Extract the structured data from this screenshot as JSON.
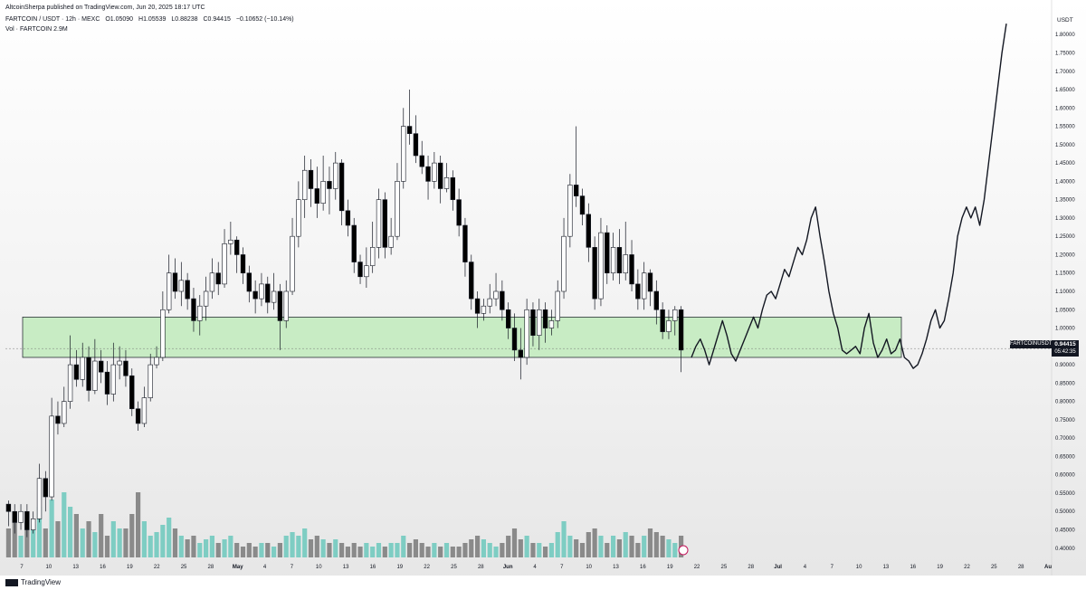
{
  "header": {
    "publisher": "AltcoinSherpa published on TradingView.com, Jun 20, 2025 18:17 UTC",
    "symbol": "FARTCOIN / USDT · 12h · MEXC",
    "open": "O1.05090",
    "high": "H1.05539",
    "low": "L0.88238",
    "close": "C0.94415",
    "change": "−0.10652 (−10.14%)",
    "volume": "Vol · FARTCOIN  2.9M"
  },
  "axis": {
    "currency": "USDT",
    "price_label": "FARTCOINUSDT",
    "current_value": "0.94415",
    "countdown": "05:42:35"
  },
  "footer": {
    "logo": "TradingView"
  },
  "colors": {
    "up": "#ffffff",
    "down": "#000000",
    "zone_fill": "#c8ecc4",
    "vol_up": "#7ecdc3",
    "vol_down": "#8a8a8a"
  },
  "chart_data": {
    "type": "candlestick",
    "ylim": [
      0.36,
      1.84
    ],
    "y_ticks": [
      0.4,
      0.45,
      0.5,
      0.55,
      0.6,
      0.65,
      0.7,
      0.75,
      0.8,
      0.85,
      0.9,
      0.95,
      1.0,
      1.05,
      1.1,
      1.15,
      1.2,
      1.25,
      1.3,
      1.35,
      1.4,
      1.45,
      1.5,
      1.55,
      1.6,
      1.65,
      1.7,
      1.75,
      1.8
    ],
    "x_labels": [
      "7",
      "10",
      "13",
      "16",
      "19",
      "22",
      "25",
      "28",
      "May",
      "4",
      "7",
      "10",
      "13",
      "16",
      "19",
      "22",
      "25",
      "28",
      "Jun",
      "4",
      "7",
      "10",
      "13",
      "16",
      "19",
      "22",
      "25",
      "28",
      "Jul",
      "4",
      "7",
      "10",
      "13",
      "16",
      "19",
      "22",
      "25",
      "28",
      "Au"
    ],
    "support_zone": [
      0.92,
      1.03
    ],
    "current_price": 0.94415,
    "candles": [
      [
        0.52,
        0.5,
        0.53,
        0.46
      ],
      [
        0.5,
        0.47,
        0.52,
        0.44
      ],
      [
        0.47,
        0.5,
        0.52,
        0.45
      ],
      [
        0.5,
        0.45,
        0.52,
        0.43
      ],
      [
        0.45,
        0.48,
        0.5,
        0.44
      ],
      [
        0.48,
        0.59,
        0.63,
        0.47
      ],
      [
        0.59,
        0.54,
        0.61,
        0.5
      ],
      [
        0.54,
        0.76,
        0.81,
        0.53
      ],
      [
        0.76,
        0.74,
        0.8,
        0.71
      ],
      [
        0.74,
        0.8,
        0.84,
        0.73
      ],
      [
        0.8,
        0.9,
        0.98,
        0.78
      ],
      [
        0.9,
        0.86,
        0.94,
        0.84
      ],
      [
        0.86,
        0.92,
        0.96,
        0.84
      ],
      [
        0.92,
        0.83,
        0.95,
        0.8
      ],
      [
        0.83,
        0.91,
        0.97,
        0.82
      ],
      [
        0.91,
        0.88,
        0.94,
        0.85
      ],
      [
        0.88,
        0.82,
        0.91,
        0.79
      ],
      [
        0.82,
        0.9,
        0.96,
        0.8
      ],
      [
        0.9,
        0.91,
        0.95,
        0.86
      ],
      [
        0.91,
        0.87,
        0.94,
        0.84
      ],
      [
        0.87,
        0.78,
        0.89,
        0.76
      ],
      [
        0.78,
        0.74,
        0.8,
        0.72
      ],
      [
        0.74,
        0.81,
        0.84,
        0.73
      ],
      [
        0.81,
        0.9,
        0.93,
        0.8
      ],
      [
        0.9,
        0.92,
        0.95,
        0.89
      ],
      [
        0.92,
        1.05,
        1.1,
        0.91
      ],
      [
        1.05,
        1.15,
        1.2,
        1.04
      ],
      [
        1.15,
        1.1,
        1.19,
        1.08
      ],
      [
        1.1,
        1.13,
        1.18,
        1.06
      ],
      [
        1.13,
        1.08,
        1.15,
        1.05
      ],
      [
        1.08,
        1.02,
        1.11,
        0.99
      ],
      [
        1.02,
        1.06,
        1.09,
        0.98
      ],
      [
        1.06,
        1.1,
        1.14,
        1.02
      ],
      [
        1.1,
        1.15,
        1.19,
        1.08
      ],
      [
        1.15,
        1.12,
        1.18,
        1.09
      ],
      [
        1.12,
        1.23,
        1.27,
        1.11
      ],
      [
        1.23,
        1.24,
        1.29,
        1.2
      ],
      [
        1.24,
        1.2,
        1.25,
        1.15
      ],
      [
        1.2,
        1.15,
        1.22,
        1.12
      ],
      [
        1.15,
        1.1,
        1.17,
        1.07
      ],
      [
        1.1,
        1.08,
        1.13,
        1.04
      ],
      [
        1.08,
        1.12,
        1.15,
        1.06
      ],
      [
        1.12,
        1.07,
        1.14,
        1.04
      ],
      [
        1.07,
        1.1,
        1.15,
        1.05
      ],
      [
        1.1,
        1.02,
        1.12,
        0.94
      ],
      [
        1.02,
        1.1,
        1.13,
        1.0
      ],
      [
        1.1,
        1.25,
        1.3,
        1.09
      ],
      [
        1.25,
        1.35,
        1.4,
        1.22
      ],
      [
        1.35,
        1.43,
        1.47,
        1.3
      ],
      [
        1.43,
        1.38,
        1.46,
        1.33
      ],
      [
        1.38,
        1.34,
        1.44,
        1.3
      ],
      [
        1.34,
        1.4,
        1.47,
        1.32
      ],
      [
        1.4,
        1.38,
        1.44,
        1.31
      ],
      [
        1.38,
        1.45,
        1.48,
        1.35
      ],
      [
        1.45,
        1.32,
        1.46,
        1.28
      ],
      [
        1.32,
        1.28,
        1.35,
        1.25
      ],
      [
        1.28,
        1.18,
        1.3,
        1.15
      ],
      [
        1.18,
        1.14,
        1.2,
        1.12
      ],
      [
        1.14,
        1.17,
        1.22,
        1.11
      ],
      [
        1.17,
        1.22,
        1.29,
        1.15
      ],
      [
        1.22,
        1.35,
        1.38,
        1.19
      ],
      [
        1.35,
        1.22,
        1.37,
        1.19
      ],
      [
        1.22,
        1.25,
        1.3,
        1.2
      ],
      [
        1.25,
        1.4,
        1.45,
        1.24
      ],
      [
        1.4,
        1.55,
        1.6,
        1.38
      ],
      [
        1.55,
        1.53,
        1.65,
        1.5
      ],
      [
        1.53,
        1.47,
        1.58,
        1.45
      ],
      [
        1.47,
        1.44,
        1.51,
        1.42
      ],
      [
        1.44,
        1.4,
        1.47,
        1.35
      ],
      [
        1.4,
        1.45,
        1.48,
        1.38
      ],
      [
        1.45,
        1.38,
        1.47,
        1.34
      ],
      [
        1.38,
        1.41,
        1.45,
        1.37
      ],
      [
        1.41,
        1.35,
        1.43,
        1.32
      ],
      [
        1.35,
        1.28,
        1.38,
        1.25
      ],
      [
        1.28,
        1.18,
        1.3,
        1.14
      ],
      [
        1.18,
        1.08,
        1.2,
        1.05
      ],
      [
        1.08,
        1.04,
        1.1,
        1.0
      ],
      [
        1.04,
        1.06,
        1.08,
        1.02
      ],
      [
        1.06,
        1.08,
        1.12,
        1.04
      ],
      [
        1.08,
        1.1,
        1.15,
        1.06
      ],
      [
        1.1,
        1.05,
        1.13,
        1.02
      ],
      [
        1.05,
        1.0,
        1.07,
        0.97
      ],
      [
        1.0,
        0.94,
        1.04,
        0.91
      ],
      [
        0.94,
        0.92,
        1.0,
        0.86
      ],
      [
        0.92,
        1.05,
        1.08,
        0.9
      ],
      [
        1.05,
        0.98,
        1.07,
        0.95
      ],
      [
        0.98,
        1.05,
        1.08,
        0.94
      ],
      [
        1.05,
        1.0,
        1.07,
        0.96
      ],
      [
        1.0,
        1.02,
        1.05,
        0.98
      ],
      [
        1.02,
        1.1,
        1.13,
        1.0
      ],
      [
        1.1,
        1.25,
        1.3,
        1.08
      ],
      [
        1.25,
        1.39,
        1.42,
        1.22
      ],
      [
        1.39,
        1.36,
        1.55,
        1.33
      ],
      [
        1.36,
        1.31,
        1.38,
        1.28
      ],
      [
        1.31,
        1.22,
        1.34,
        1.18
      ],
      [
        1.22,
        1.08,
        1.25,
        1.05
      ],
      [
        1.08,
        1.26,
        1.3,
        1.06
      ],
      [
        1.26,
        1.15,
        1.28,
        1.12
      ],
      [
        1.15,
        1.22,
        1.26,
        1.13
      ],
      [
        1.22,
        1.15,
        1.27,
        1.12
      ],
      [
        1.15,
        1.2,
        1.29,
        1.13
      ],
      [
        1.2,
        1.12,
        1.24,
        1.1
      ],
      [
        1.12,
        1.08,
        1.16,
        1.05
      ],
      [
        1.08,
        1.15,
        1.18,
        1.05
      ],
      [
        1.15,
        1.1,
        1.16,
        1.06
      ],
      [
        1.1,
        1.05,
        1.13,
        1.01
      ],
      [
        1.05,
        0.99,
        1.07,
        0.97
      ],
      [
        0.99,
        1.02,
        1.05,
        0.97
      ],
      [
        1.02,
        1.05,
        1.06,
        0.98
      ],
      [
        1.05,
        0.94,
        1.06,
        0.88
      ]
    ],
    "volume": [
      0.4,
      0.6,
      0.3,
      0.5,
      0.45,
      0.7,
      0.4,
      0.8,
      0.5,
      0.9,
      0.7,
      0.6,
      0.4,
      0.5,
      0.35,
      0.6,
      0.3,
      0.5,
      0.4,
      0.4,
      0.6,
      0.9,
      0.5,
      0.3,
      0.35,
      0.45,
      0.55,
      0.4,
      0.3,
      0.25,
      0.3,
      0.2,
      0.25,
      0.3,
      0.2,
      0.25,
      0.3,
      0.2,
      0.15,
      0.2,
      0.15,
      0.2,
      0.2,
      0.15,
      0.2,
      0.3,
      0.35,
      0.3,
      0.4,
      0.25,
      0.3,
      0.25,
      0.2,
      0.25,
      0.2,
      0.15,
      0.2,
      0.15,
      0.2,
      0.15,
      0.2,
      0.15,
      0.2,
      0.2,
      0.3,
      0.2,
      0.25,
      0.2,
      0.15,
      0.2,
      0.15,
      0.2,
      0.15,
      0.15,
      0.2,
      0.25,
      0.3,
      0.25,
      0.2,
      0.15,
      0.2,
      0.3,
      0.4,
      0.25,
      0.3,
      0.2,
      0.2,
      0.15,
      0.2,
      0.35,
      0.5,
      0.3,
      0.25,
      0.2,
      0.35,
      0.4,
      0.3,
      0.2,
      0.3,
      0.25,
      0.35,
      0.3,
      0.2,
      0.3,
      0.4,
      0.35,
      0.3,
      0.25,
      0.2,
      0.3
    ],
    "projection": [
      [
        0,
        0.92
      ],
      [
        1,
        0.95
      ],
      [
        2,
        0.97
      ],
      [
        3,
        0.94
      ],
      [
        4,
        0.9
      ],
      [
        5,
        0.94
      ],
      [
        6,
        0.98
      ],
      [
        7,
        1.02
      ],
      [
        8,
        0.98
      ],
      [
        9,
        0.93
      ],
      [
        10,
        0.91
      ],
      [
        11,
        0.94
      ],
      [
        12,
        0.97
      ],
      [
        13,
        1.0
      ],
      [
        14,
        1.03
      ],
      [
        15,
        1.0
      ],
      [
        16,
        1.05
      ],
      [
        17,
        1.09
      ],
      [
        18,
        1.1
      ],
      [
        19,
        1.08
      ],
      [
        20,
        1.12
      ],
      [
        21,
        1.16
      ],
      [
        22,
        1.14
      ],
      [
        23,
        1.18
      ],
      [
        24,
        1.22
      ],
      [
        25,
        1.2
      ],
      [
        26,
        1.24
      ],
      [
        27,
        1.3
      ],
      [
        28,
        1.33
      ],
      [
        29,
        1.25
      ],
      [
        30,
        1.18
      ],
      [
        31,
        1.1
      ],
      [
        32,
        1.04
      ],
      [
        33,
        1.0
      ],
      [
        34,
        0.94
      ],
      [
        35,
        0.93
      ],
      [
        36,
        0.94
      ],
      [
        37,
        0.95
      ],
      [
        38,
        0.93
      ],
      [
        39,
        1.0
      ],
      [
        40,
        1.04
      ],
      [
        41,
        0.96
      ],
      [
        42,
        0.92
      ],
      [
        43,
        0.94
      ],
      [
        44,
        0.97
      ],
      [
        45,
        0.93
      ],
      [
        46,
        0.94
      ],
      [
        47,
        0.97
      ],
      [
        48,
        0.92
      ],
      [
        49,
        0.91
      ],
      [
        50,
        0.89
      ],
      [
        51,
        0.9
      ],
      [
        52,
        0.93
      ],
      [
        53,
        0.97
      ],
      [
        54,
        1.02
      ],
      [
        55,
        1.05
      ],
      [
        56,
        1.0
      ],
      [
        57,
        1.02
      ],
      [
        58,
        1.08
      ],
      [
        59,
        1.15
      ],
      [
        60,
        1.25
      ],
      [
        61,
        1.3
      ],
      [
        62,
        1.33
      ],
      [
        63,
        1.3
      ],
      [
        64,
        1.33
      ],
      [
        65,
        1.28
      ],
      [
        66,
        1.35
      ],
      [
        67,
        1.45
      ],
      [
        68,
        1.55
      ],
      [
        69,
        1.65
      ],
      [
        70,
        1.75
      ],
      [
        71,
        1.83
      ]
    ]
  }
}
